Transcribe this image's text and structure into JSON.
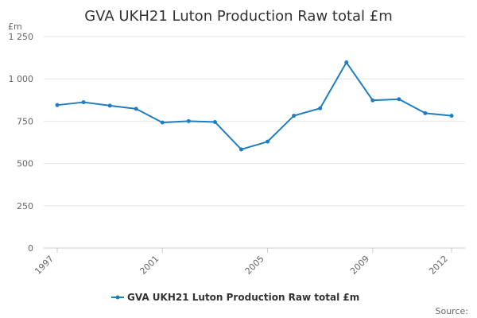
{
  "chart_data": {
    "type": "line",
    "title": "GVA UKH21 Luton Production Raw total £m",
    "yunit": "£m",
    "xlabel": "",
    "ylabel": "",
    "x": [
      1997,
      1998,
      1999,
      2000,
      2001,
      2002,
      2003,
      2004,
      2005,
      2006,
      2007,
      2008,
      2009,
      2010,
      2011,
      2012
    ],
    "xtick_labels": [
      "1997",
      "2001",
      "2005",
      "2009",
      "2012"
    ],
    "xtick_values": [
      1997,
      2001,
      2005,
      2009,
      2012
    ],
    "xlim": [
      1997,
      2012
    ],
    "ylim": [
      0,
      1250
    ],
    "ytick_values": [
      0,
      250,
      500,
      750,
      1000,
      1250
    ],
    "ytick_labels": [
      "0",
      "250",
      "500",
      "750",
      "1 000",
      "1 250"
    ],
    "grid": true,
    "legend_position": "bottom",
    "series": [
      {
        "name": "GVA UKH21 Luton Production Raw total £m",
        "color": "#1f7ec2",
        "values": [
          845,
          862,
          842,
          823,
          742,
          750,
          745,
          583,
          629,
          782,
          826,
          1097,
          873,
          880,
          797,
          782
        ]
      }
    ],
    "source_label": "Source:"
  }
}
